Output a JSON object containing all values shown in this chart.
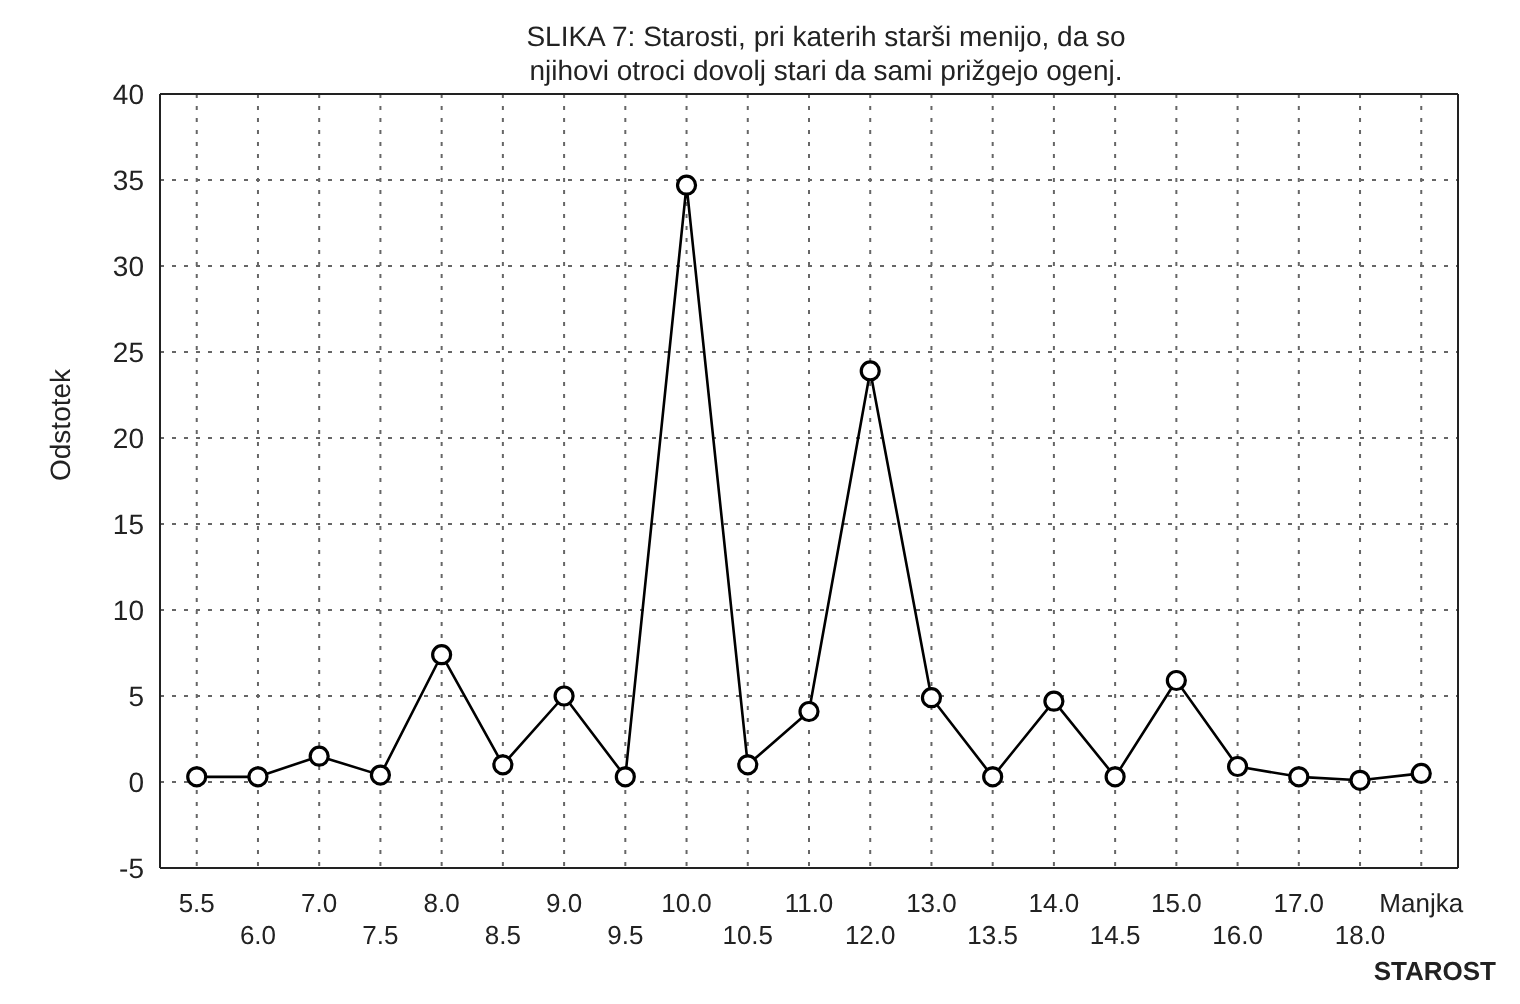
{
  "chart_data": {
    "type": "line",
    "title": "SLIKA 7: Starosti, pri katerih starši menijo, da so njihovi otroci dovolj stari da sami prižgejo ogenj.",
    "xlabel": "STAROST",
    "ylabel": "Odstotek",
    "categories": [
      "5.5",
      "6.0",
      "7.0",
      "7.5",
      "8.0",
      "8.5",
      "9.0",
      "9.5",
      "10.0",
      "10.5",
      "11.0",
      "12.0",
      "13.0",
      "13.5",
      "14.0",
      "14.5",
      "15.0",
      "16.0",
      "17.0",
      "18.0",
      "Manjka"
    ],
    "series": [
      {
        "color": "#000000",
        "values": [
          0.3,
          0.3,
          1.5,
          0.4,
          7.4,
          1.0,
          5.0,
          0.3,
          34.7,
          1.0,
          4.1,
          23.9,
          4.9,
          0.3,
          4.7,
          0.3,
          5.9,
          0.9,
          0.3,
          0.1,
          0.5
        ]
      }
    ],
    "ylim": [
      -5,
      40
    ],
    "yticks": [
      -5,
      0,
      5,
      10,
      15,
      20,
      25,
      30,
      35,
      40
    ],
    "grid": true,
    "legend": false,
    "marker": "circle",
    "line_style": "solid"
  }
}
